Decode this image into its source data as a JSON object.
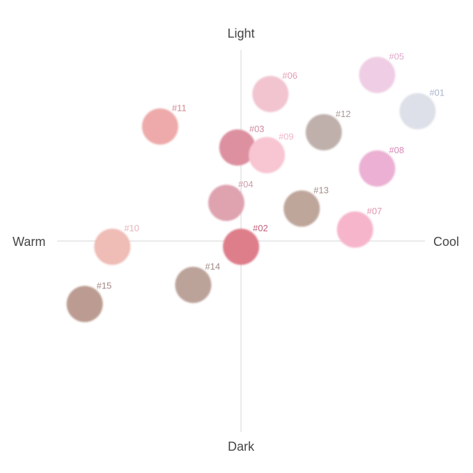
{
  "chart_data": {
    "type": "scatter",
    "axes": {
      "left": "Warm",
      "right": "Cool",
      "top": "Light",
      "bottom": "Dark"
    },
    "xlim": [
      -10,
      10
    ],
    "ylim": [
      -10,
      10
    ],
    "grid": false,
    "points": [
      {
        "label": "#01",
        "x": 9.6,
        "y": 6.8,
        "color": "#dde0e8",
        "label_color": "#a8b4cc"
      },
      {
        "label": "#02",
        "x": 0.0,
        "y": -0.3,
        "color": "#de7e8a",
        "label_color": "#c0607a"
      },
      {
        "label": "#03",
        "x": -0.2,
        "y": 4.9,
        "color": "#dc90a0",
        "label_color": "#cc8a9c"
      },
      {
        "label": "#04",
        "x": -0.8,
        "y": 2.0,
        "color": "#dfa3b0",
        "label_color": "#d09aa8"
      },
      {
        "label": "#05",
        "x": 7.4,
        "y": 8.7,
        "color": "#efcde4",
        "label_color": "#e0a8cc"
      },
      {
        "label": "#06",
        "x": 1.6,
        "y": 7.7,
        "color": "#f1c4d0",
        "label_color": "#e49cb2"
      },
      {
        "label": "#07",
        "x": 6.2,
        "y": 0.6,
        "color": "#f6b5cb",
        "label_color": "#e090ac"
      },
      {
        "label": "#08",
        "x": 7.4,
        "y": 3.8,
        "color": "#ebb0d3",
        "label_color": "#d888b8"
      },
      {
        "label": "#09",
        "x": 1.4,
        "y": 4.5,
        "color": "#f8c5d2",
        "label_color": "#f0b4c6"
      },
      {
        "label": "#10",
        "x": -7.0,
        "y": -0.3,
        "color": "#efbcb6",
        "label_color": "#e4b4bc"
      },
      {
        "label": "#11",
        "x": -4.4,
        "y": 6.0,
        "color": "#eeaaaa",
        "label_color": "#d08890"
      },
      {
        "label": "#12",
        "x": 4.5,
        "y": 5.7,
        "color": "#bfb0ac",
        "label_color": "#a89894"
      },
      {
        "label": "#13",
        "x": 3.3,
        "y": 1.7,
        "color": "#bfa69b",
        "label_color": "#a08c86"
      },
      {
        "label": "#14",
        "x": -2.6,
        "y": -2.3,
        "color": "#bca39a",
        "label_color": "#a08c88"
      },
      {
        "label": "#15",
        "x": -8.5,
        "y": -3.3,
        "color": "#bc9c92",
        "label_color": "#a08480"
      }
    ]
  }
}
